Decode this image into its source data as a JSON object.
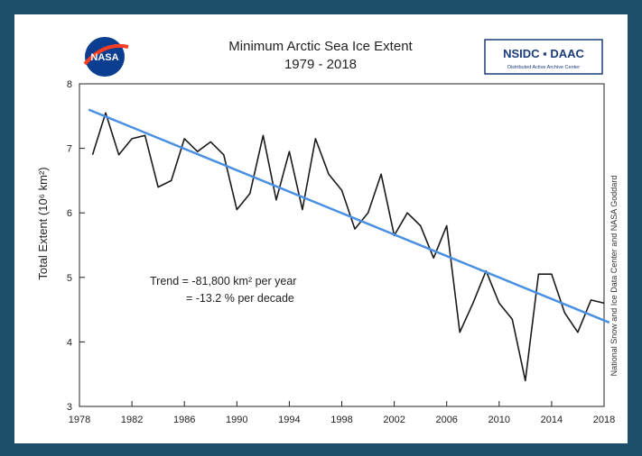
{
  "chart_data": {
    "type": "line",
    "title": "Minimum Arctic Sea Ice Extent",
    "subtitle": "1979 - 2018",
    "ylabel": "Total Extent (10⁶ km²)",
    "xlabel": "",
    "xlim": [
      1978,
      2018
    ],
    "ylim": [
      3,
      8
    ],
    "xticks": [
      "1978",
      "1982",
      "1986",
      "1990",
      "1994",
      "1998",
      "2002",
      "2006",
      "2010",
      "2014",
      "2018"
    ],
    "yticks": [
      "3",
      "4",
      "5",
      "6",
      "7",
      "8"
    ],
    "grid": false,
    "x": [
      1979,
      1980,
      1981,
      1982,
      1983,
      1984,
      1985,
      1986,
      1987,
      1988,
      1989,
      1990,
      1991,
      1992,
      1993,
      1994,
      1995,
      1996,
      1997,
      1998,
      1999,
      2000,
      2001,
      2002,
      2003,
      2004,
      2005,
      2006,
      2007,
      2008,
      2009,
      2010,
      2011,
      2012,
      2013,
      2014,
      2015,
      2016,
      2017,
      2018
    ],
    "series": [
      {
        "values": [
          6.9,
          7.55,
          6.9,
          7.15,
          7.2,
          6.4,
          6.5,
          7.15,
          6.95,
          7.1,
          6.9,
          6.05,
          6.3,
          7.2,
          6.2,
          6.95,
          6.05,
          7.15,
          6.6,
          6.35,
          5.75,
          6.0,
          6.6,
          5.65,
          6.0,
          5.8,
          5.3,
          5.8,
          4.15,
          4.6,
          5.1,
          4.6,
          4.35,
          3.4,
          5.05,
          5.05,
          4.45,
          4.15,
          4.65,
          4.6
        ],
        "color": "#1a1a1a"
      },
      {
        "values": [
          7.6,
          4.3
        ],
        "x": [
          1978.7,
          2018.4
        ],
        "color": "#4a90e0"
      }
    ],
    "annotations": {
      "trend_line1": "Trend = -81,800 km² per year",
      "trend_line2": "= -13.2 % per decade"
    },
    "credit": "National Snow and Ice Data Center and NASA Goddard"
  },
  "logos": {
    "nasa": "NASA",
    "nsidc": "NSIDC ▪ DAAC",
    "nsidc_sub": "Distributed Active Archive Center"
  }
}
